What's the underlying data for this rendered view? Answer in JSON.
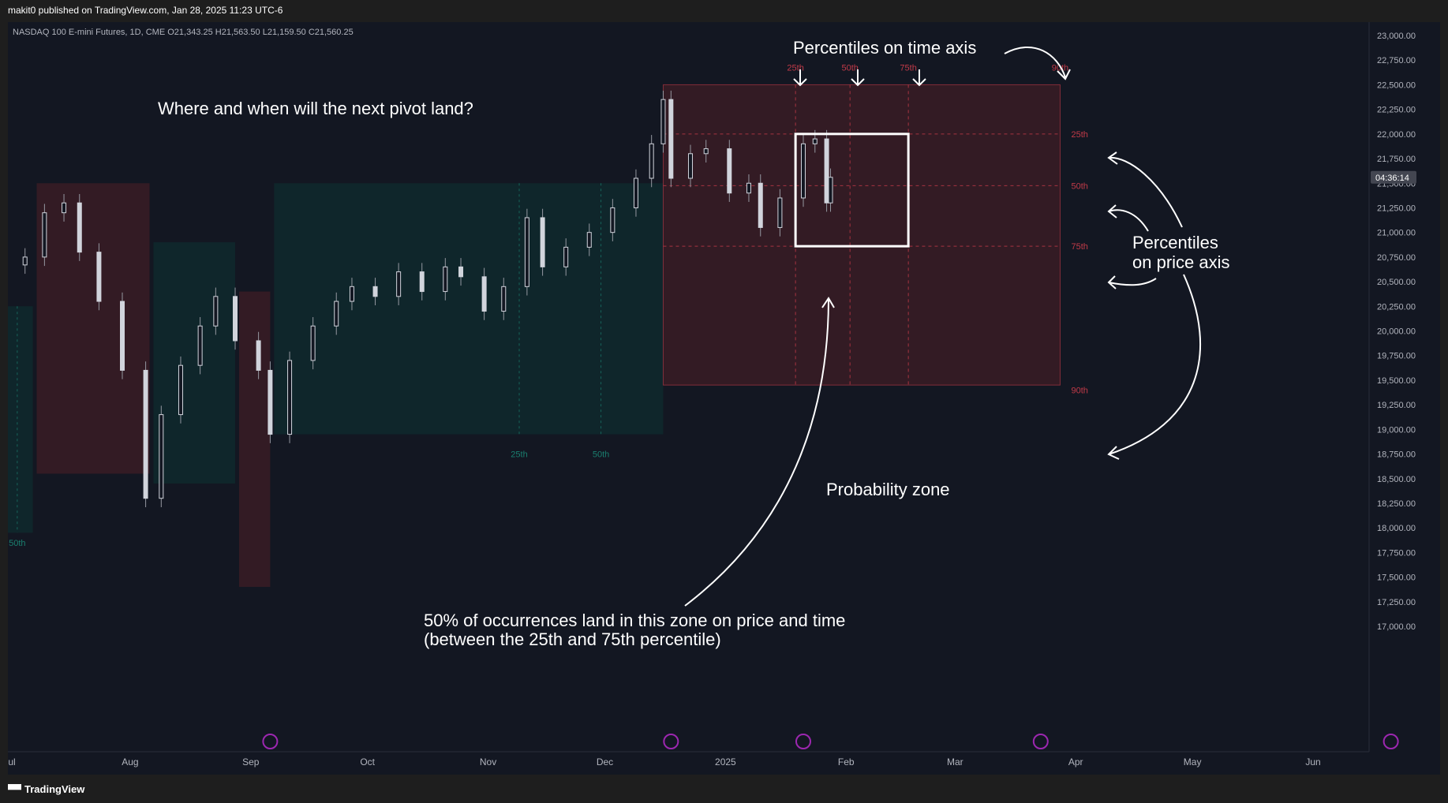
{
  "header": {
    "published": "makit0 published on TradingView.com, Jan 28, 2025 11:23 UTC-6"
  },
  "footer": {
    "brand": "TradingView",
    "logo_icon": "tradingview-logo-icon"
  },
  "colors": {
    "background": "#131722",
    "red_zone": "#3a1c24",
    "teal_zone": "#10282c",
    "red_text": "#c23a48",
    "teal_text": "#1a7f6f",
    "candle": "#d1d4dc"
  },
  "chart_data": {
    "type": "candlestick",
    "symbol": "NASDAQ 100 E-mini Futures",
    "interval": "1D",
    "exchange": "CME",
    "ohlc_label": {
      "o_key": "O",
      "o": "21,343.25",
      "h_key": "H",
      "h": "21,563.50",
      "l_key": "L",
      "l": "21,159.50",
      "c_key": "C",
      "c": "21,560.25"
    },
    "ylim": [
      16900,
      23100
    ],
    "y_ticks": [
      23000,
      22750,
      22500,
      22250,
      22000,
      21750,
      21500,
      21250,
      21000,
      20750,
      20500,
      20250,
      20000,
      19750,
      19500,
      19250,
      19000,
      18750,
      18500,
      18250,
      18000,
      17750,
      17500,
      17250,
      17000
    ],
    "current_price_label": "04:36:14",
    "current_price": 21560,
    "x_labels": [
      {
        "label": "Jul",
        "date": "2024-07-01"
      },
      {
        "label": "Aug",
        "date": "2024-08-01"
      },
      {
        "label": "Sep",
        "date": "2024-09-01"
      },
      {
        "label": "Oct",
        "date": "2024-10-01"
      },
      {
        "label": "Nov",
        "date": "2024-11-01"
      },
      {
        "label": "Dec",
        "date": "2024-12-01"
      },
      {
        "label": "2025",
        "date": "2025-01-01"
      },
      {
        "label": "Feb",
        "date": "2025-02-01"
      },
      {
        "label": "Mar",
        "date": "2025-03-01"
      },
      {
        "label": "Apr",
        "date": "2025-04-01"
      },
      {
        "label": "May",
        "date": "2025-05-01"
      },
      {
        "label": "Jun",
        "date": "2025-06-01"
      }
    ],
    "closes": [
      {
        "date": "2024-07-05",
        "close": 20750
      },
      {
        "date": "2024-07-10",
        "close": 21200
      },
      {
        "date": "2024-07-15",
        "close": 21300
      },
      {
        "date": "2024-07-19",
        "close": 20800
      },
      {
        "date": "2024-07-24",
        "close": 20300
      },
      {
        "date": "2024-07-30",
        "close": 19600
      },
      {
        "date": "2024-08-05",
        "close": 18300
      },
      {
        "date": "2024-08-09",
        "close": 19150
      },
      {
        "date": "2024-08-14",
        "close": 19650
      },
      {
        "date": "2024-08-19",
        "close": 20050
      },
      {
        "date": "2024-08-23",
        "close": 20350
      },
      {
        "date": "2024-08-28",
        "close": 19900
      },
      {
        "date": "2024-09-03",
        "close": 19600
      },
      {
        "date": "2024-09-06",
        "close": 18950
      },
      {
        "date": "2024-09-11",
        "close": 19700
      },
      {
        "date": "2024-09-17",
        "close": 20050
      },
      {
        "date": "2024-09-23",
        "close": 20300
      },
      {
        "date": "2024-09-27",
        "close": 20450
      },
      {
        "date": "2024-10-03",
        "close": 20350
      },
      {
        "date": "2024-10-09",
        "close": 20600
      },
      {
        "date": "2024-10-15",
        "close": 20400
      },
      {
        "date": "2024-10-21",
        "close": 20650
      },
      {
        "date": "2024-10-25",
        "close": 20550
      },
      {
        "date": "2024-10-31",
        "close": 20200
      },
      {
        "date": "2024-11-05",
        "close": 20450
      },
      {
        "date": "2024-11-11",
        "close": 21150
      },
      {
        "date": "2024-11-15",
        "close": 20650
      },
      {
        "date": "2024-11-21",
        "close": 20850
      },
      {
        "date": "2024-11-27",
        "close": 21000
      },
      {
        "date": "2024-12-03",
        "close": 21250
      },
      {
        "date": "2024-12-09",
        "close": 21550
      },
      {
        "date": "2024-12-13",
        "close": 21900
      },
      {
        "date": "2024-12-16",
        "close": 22350
      },
      {
        "date": "2024-12-18",
        "close": 21550
      },
      {
        "date": "2024-12-23",
        "close": 21800
      },
      {
        "date": "2024-12-27",
        "close": 21850
      },
      {
        "date": "2025-01-02",
        "close": 21400
      },
      {
        "date": "2025-01-07",
        "close": 21500
      },
      {
        "date": "2025-01-10",
        "close": 21050
      },
      {
        "date": "2025-01-15",
        "close": 21350
      },
      {
        "date": "2025-01-21",
        "close": 21900
      },
      {
        "date": "2025-01-24",
        "close": 21950
      },
      {
        "date": "2025-01-27",
        "close": 21300
      },
      {
        "date": "2025-01-28",
        "close": 21560
      }
    ],
    "zones": [
      {
        "color": "teal",
        "start": "2024-06-28",
        "end": "2024-07-07",
        "top": 20250,
        "bottom": 17950
      },
      {
        "color": "red",
        "start": "2024-07-08",
        "end": "2024-08-06",
        "top": 21500,
        "bottom": 18550
      },
      {
        "color": "teal",
        "start": "2024-08-07",
        "end": "2024-08-28",
        "top": 20900,
        "bottom": 18450
      },
      {
        "color": "red",
        "start": "2024-08-29",
        "end": "2024-09-06",
        "top": 20400,
        "bottom": 17400
      },
      {
        "color": "teal",
        "start": "2024-09-07",
        "end": "2024-12-16",
        "top": 21500,
        "bottom": 18950
      },
      {
        "color": "red",
        "start": "2024-12-16",
        "end": "2025-03-28",
        "top": 22500,
        "bottom": 19450
      }
    ],
    "teal_percentiles": [
      {
        "label": "50th",
        "date": "2024-07-03",
        "y": 17850
      },
      {
        "label": "25th",
        "date": "2024-11-09",
        "y": 18750
      },
      {
        "label": "50th",
        "date": "2024-11-30",
        "y": 18750
      }
    ],
    "time_percentiles": [
      {
        "label": "25th",
        "date": "2025-01-19"
      },
      {
        "label": "50th",
        "date": "2025-02-02"
      },
      {
        "label": "75th",
        "date": "2025-02-17"
      },
      {
        "label": "90th",
        "date": "2025-03-28"
      }
    ],
    "price_percentiles": [
      {
        "label": "25th",
        "value": 22000
      },
      {
        "label": "50th",
        "value": 21475
      },
      {
        "label": "75th",
        "value": 20860
      },
      {
        "label": "90th",
        "value": 19400
      }
    ],
    "box": {
      "start": "2025-01-19",
      "end": "2025-02-17",
      "top": 22000,
      "bottom": 20860
    },
    "annotations": {
      "question": "Where and when will the next pivot land?",
      "time_axis": "Percentiles on time axis",
      "price_axis_line1": "Percentiles",
      "price_axis_line2": "on price axis",
      "probability": "Probability zone",
      "fifty_line1": "50% of occurrences land in this zone on price and time",
      "fifty_line2": "(between the 25th and 75th percentile)"
    }
  }
}
